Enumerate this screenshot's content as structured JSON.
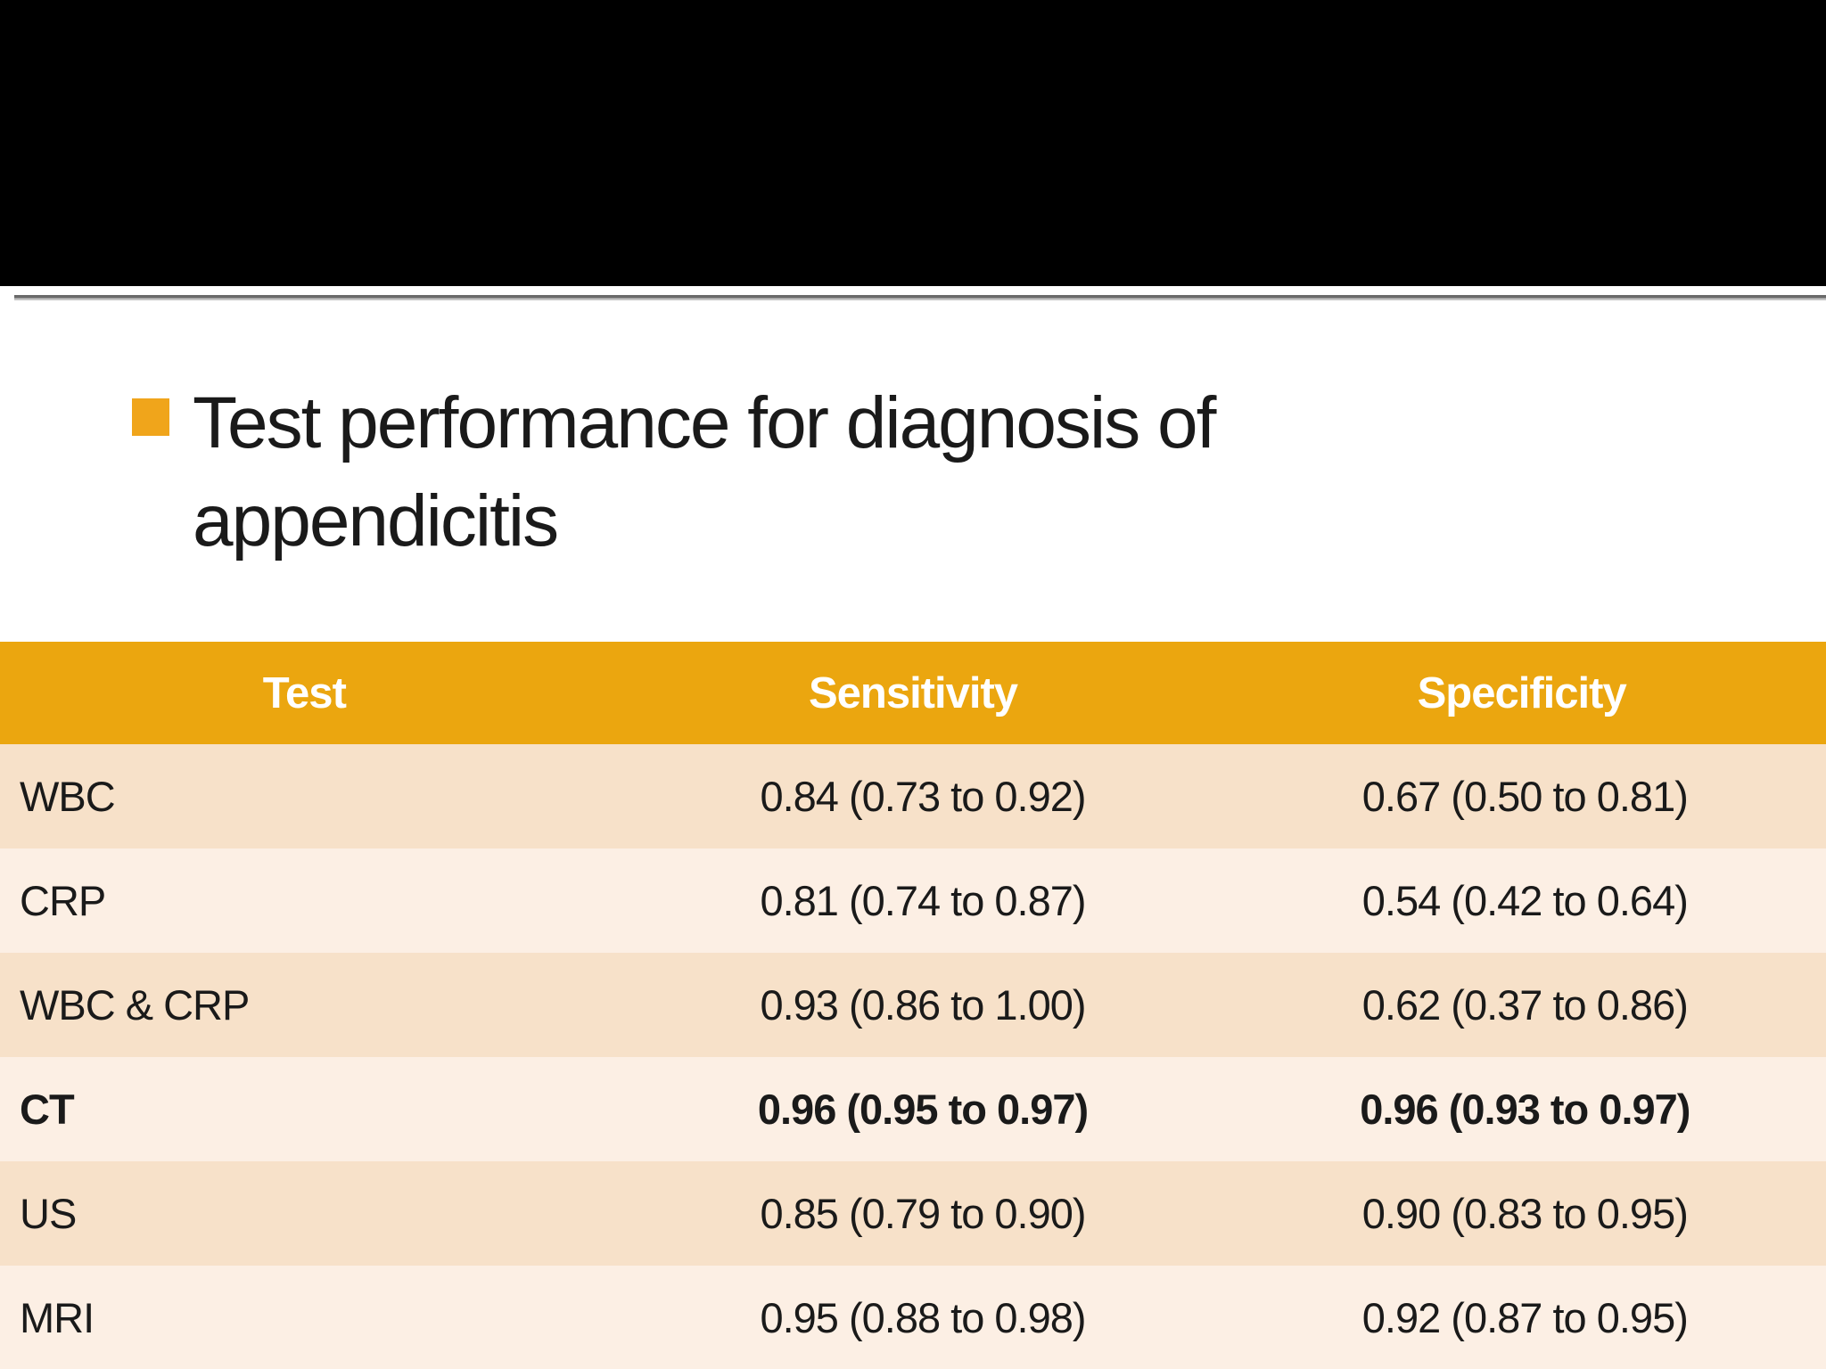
{
  "slide": {
    "title": "Test performance for diagnosis of appendicitis"
  },
  "colors": {
    "top_bar": "#000000",
    "bullet": "#F0A51B",
    "table_header_bg": "#EBA60F",
    "table_header_text": "#FFFFFF",
    "row_dark": "#F7E1C9",
    "row_light": "#FCEFE4",
    "body_text": "#1A1A1A"
  },
  "table": {
    "headers": [
      "Test",
      "Sensitivity",
      "Specificity"
    ],
    "rows": [
      {
        "test": "WBC",
        "sensitivity": "0.84 (0.73 to 0.92)",
        "specificity": "0.67 (0.50 to 0.81)"
      },
      {
        "test": "CRP",
        "sensitivity": "0.81 (0.74 to 0.87)",
        "specificity": "0.54 (0.42 to 0.64)"
      },
      {
        "test": "WBC & CRP",
        "sensitivity": "0.93 (0.86 to 1.00)",
        "specificity": "0.62 (0.37 to 0.86)"
      },
      {
        "test": "CT",
        "sensitivity": "0.96 (0.95 to 0.97)",
        "specificity": "0.96 (0.93 to 0.97)"
      },
      {
        "test": "US",
        "sensitivity": "0.85 (0.79 to 0.90)",
        "specificity": "0.90 (0.83 to 0.95)"
      },
      {
        "test": "MRI",
        "sensitivity": "0.95 (0.88 to 0.98)",
        "specificity": "0.92 (0.87 to 0.95)"
      }
    ],
    "highlighted_row": "CT"
  }
}
